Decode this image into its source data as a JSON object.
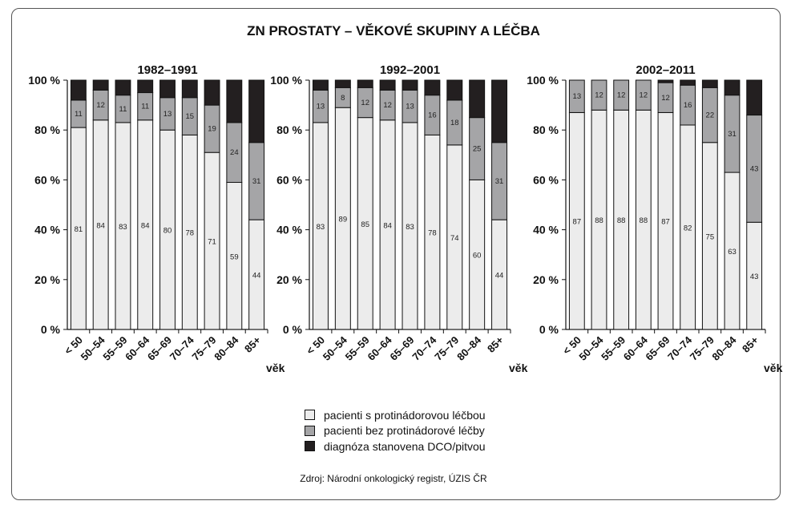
{
  "title": "ZN PROSTATY – VĚKOVÉ SKUPINY A LÉČBA",
  "source": "Zdroj: Národní onkologický registr, ÚZIS ČR",
  "chart_data": {
    "type": "bar",
    "stacked": true,
    "categories": [
      "< 50",
      "50–54",
      "55–59",
      "60–64",
      "65–69",
      "70–74",
      "75–79",
      "80–84",
      "85+"
    ],
    "xlabel": "věk",
    "ylabel": "",
    "ylim": [
      0,
      100
    ],
    "yticks": [
      "0 %",
      "20 %",
      "40 %",
      "60 %",
      "80 %",
      "100 %"
    ],
    "legend": [
      "pacienti s protinádorovou léčbou",
      "pacienti bez protinádorové léčby",
      "diagnóza stanovena DCO/pitvou"
    ],
    "legend_position": "bottom-center",
    "colors": [
      "#ececec",
      "#a5a5a7",
      "#231f20"
    ],
    "panels": [
      {
        "title": "1982–1991",
        "series": [
          {
            "name": "pacienti s protinádorovou léčbou",
            "values": [
              81,
              84,
              83,
              84,
              80,
              78,
              71,
              59,
              44
            ]
          },
          {
            "name": "pacienti bez protinádorové léčby",
            "values": [
              11,
              12,
              11,
              11,
              13,
              15,
              19,
              24,
              31
            ]
          },
          {
            "name": "diagnóza stanovena DCO/pitvou",
            "values": [
              8,
              4,
              6,
              5,
              7,
              7,
              10,
              17,
              25
            ]
          }
        ]
      },
      {
        "title": "1992–2001",
        "series": [
          {
            "name": "pacienti s protinádorovou léčbou",
            "values": [
              83,
              89,
              85,
              84,
              83,
              78,
              74,
              60,
              44
            ]
          },
          {
            "name": "pacienti bez protinádorové léčby",
            "values": [
              13,
              8,
              12,
              12,
              13,
              16,
              18,
              25,
              31
            ]
          },
          {
            "name": "diagnóza stanovena DCO/pitvou",
            "values": [
              4,
              3,
              3,
              4,
              4,
              6,
              8,
              15,
              25
            ]
          }
        ]
      },
      {
        "title": "2002–2011",
        "series": [
          {
            "name": "pacienti s protinádorovou léčbou",
            "values": [
              87,
              88,
              88,
              88,
              87,
              82,
              75,
              63,
              43
            ]
          },
          {
            "name": "pacienti bez protinádorové léčby",
            "values": [
              13,
              12,
              12,
              12,
              12,
              16,
              22,
              31,
              43
            ]
          },
          {
            "name": "diagnóza stanovena DCO/pitvou",
            "values": [
              1,
              1,
              1,
              1,
              1,
              2,
              3,
              7,
              14
            ]
          }
        ]
      }
    ]
  }
}
